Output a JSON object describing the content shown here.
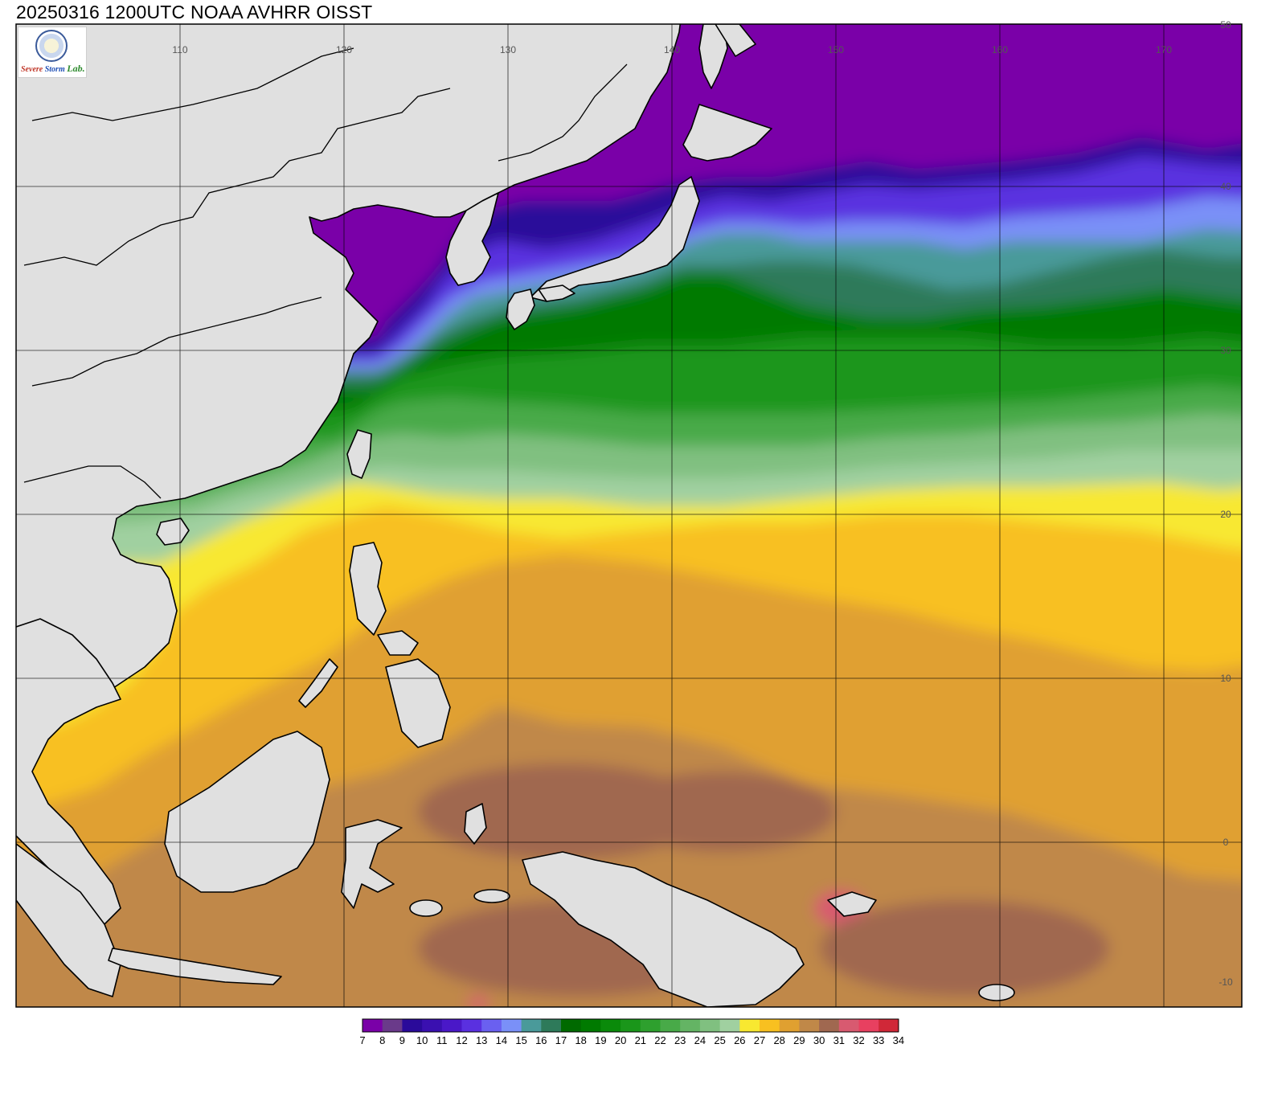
{
  "title": "20250316 1200UTC NOAA AVHRR OISST",
  "logo": {
    "alt": "Severe Storm Lab. logo",
    "words": [
      "Severe",
      "Storm",
      "Lab."
    ]
  },
  "map": {
    "lon_range": [
      100,
      175
    ],
    "lat_range": [
      -10,
      50
    ],
    "lon_ticks": [
      110,
      120,
      130,
      140,
      150,
      160,
      170
    ],
    "lat_ticks": [
      -10,
      0,
      10,
      20,
      30,
      40,
      50
    ],
    "land_color": "#e0e0e0",
    "coast_color": "#000000",
    "grid_color": "#000000"
  },
  "colorbar": {
    "values": [
      7,
      8,
      9,
      10,
      11,
      12,
      13,
      14,
      15,
      16,
      17,
      18,
      19,
      20,
      21,
      22,
      23,
      24,
      25,
      26,
      27,
      28,
      29,
      30,
      31,
      32,
      33,
      34
    ],
    "colors": [
      "#7a00a8",
      "#6a3a8a",
      "#2a0a9a",
      "#3a10b0",
      "#4a18c8",
      "#5a30e0",
      "#6a60f0",
      "#7a90f8",
      "#4a9a9a",
      "#2e7a5a",
      "#006a00",
      "#007a00",
      "#0a8a0a",
      "#1a961a",
      "#2ea02e",
      "#48aa48",
      "#64b464",
      "#80c080",
      "#a0d0a0",
      "#f8e830",
      "#f8c020",
      "#e0a030",
      "#c08848",
      "#a06850",
      "#d85a70",
      "#e84060",
      "#d02838"
    ]
  }
}
